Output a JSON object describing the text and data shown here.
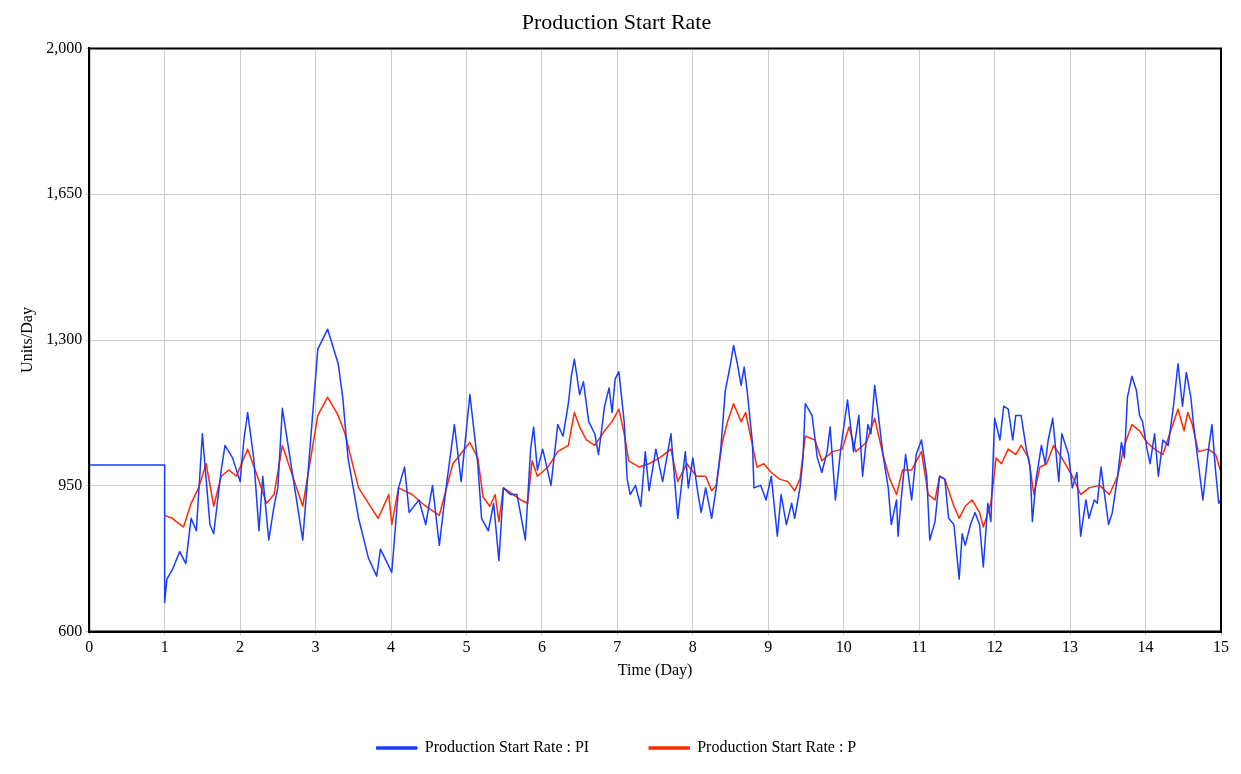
{
  "chart_data": {
    "type": "line",
    "title": "Production Start Rate",
    "xlabel": "Time (Day)",
    "ylabel": "Units/Day",
    "xlim": [
      0,
      15
    ],
    "xticks": [
      0,
      1,
      2,
      3,
      4,
      5,
      6,
      7,
      8,
      9,
      10,
      11,
      12,
      13,
      14,
      15
    ],
    "ylim": [
      600,
      2000
    ],
    "yticks": [
      600,
      950,
      {
        "value": 1300,
        "label": "1,300"
      },
      {
        "value": 1650,
        "label": "1,650"
      },
      {
        "value": 2000,
        "label": "2,000"
      }
    ],
    "grid": true,
    "legend": "bottom",
    "marker": "none",
    "line_style": "solid",
    "series": [
      {
        "name": "Production Start Rate : PI",
        "color": "#1a3cff",
        "x": [
          0,
          1,
          1,
          1.03,
          1.1,
          1.2,
          1.28,
          1.35,
          1.42,
          1.5,
          1.6,
          1.65,
          1.75,
          1.8,
          1.9,
          2.0,
          2.05,
          2.1,
          2.18,
          2.25,
          2.3,
          2.38,
          2.45,
          2.5,
          2.56,
          2.83,
          3.03,
          3.16,
          3.3,
          3.36,
          3.43,
          3.57,
          3.7,
          3.81,
          3.86,
          4.01,
          4.1,
          4.18,
          4.24,
          4.37,
          4.46,
          4.55,
          4.64,
          4.73,
          4.84,
          4.93,
          5.045,
          5.15,
          5.2,
          5.29,
          5.36,
          5.43,
          5.49,
          5.58,
          5.67,
          5.78,
          5.85,
          5.89,
          5.94,
          6.01,
          6.12,
          6.21,
          6.28,
          6.35,
          6.39,
          6.43,
          6.5,
          6.55,
          6.62,
          6.7,
          6.75,
          6.83,
          6.89,
          6.93,
          6.97,
          7.02,
          7.09,
          7.13,
          7.17,
          7.24,
          7.31,
          7.37,
          7.42,
          7.51,
          7.6,
          7.71,
          7.8,
          7.9,
          7.94,
          8.0,
          8.07,
          8.11,
          8.17,
          8.25,
          8.31,
          8.37,
          8.43,
          8.5,
          8.54,
          8.59,
          8.64,
          8.68,
          8.72,
          8.79,
          8.81,
          8.9,
          8.97,
          9.04,
          9.12,
          9.17,
          9.24,
          9.31,
          9.35,
          9.42,
          9.46,
          9.49,
          9.58,
          9.65,
          9.71,
          9.78,
          9.82,
          9.89,
          9.96,
          10.05,
          10.13,
          10.2,
          10.25,
          10.32,
          10.36,
          10.41,
          10.45,
          10.52,
          10.59,
          10.63,
          10.7,
          10.72,
          10.76,
          10.82,
          10.9,
          10.96,
          11.03,
          11.1,
          11.14,
          11.21,
          11.27,
          11.34,
          11.39,
          11.46,
          11.53,
          11.57,
          11.61,
          11.68,
          11.74,
          11.8,
          11.85,
          11.91,
          11.95,
          12.0,
          12.07,
          12.12,
          12.18,
          12.24,
          12.28,
          12.35,
          12.42,
          12.47,
          12.5,
          12.55,
          12.62,
          12.67,
          12.71,
          12.77,
          12.85,
          12.89,
          12.98,
          13.03,
          13.09,
          13.14,
          13.21,
          13.25,
          13.32,
          13.36,
          13.41,
          13.45,
          13.51,
          13.56,
          13.63,
          13.68,
          13.72,
          13.76,
          13.82,
          13.88,
          13.92,
          13.96,
          14.02,
          14.06,
          14.12,
          14.17,
          14.23,
          14.3,
          14.37,
          14.43,
          14.49,
          14.54,
          14.6,
          14.64,
          14.7,
          14.76,
          14.83,
          14.88,
          14.93,
          14.97,
          15
        ],
        "values": [
          1000,
          1000,
          670,
          726,
          748,
          792,
          763,
          872,
          842,
          1075,
          857,
          835,
          988,
          1047,
          1017,
          960,
          1060,
          1126,
          1017,
          842,
          973,
          820,
          901,
          945,
          1136,
          820,
          1278,
          1326,
          1243,
          1163,
          1017,
          872,
          777,
          733,
          798,
          742,
          945,
          995,
          886,
          916,
          857,
          951,
          807,
          945,
          1097,
          960,
          1169,
          1003,
          872,
          842,
          908,
          770,
          945,
          929,
          929,
          820,
          1038,
          1091,
          988,
          1038,
          951,
          1097,
          1069,
          1147,
          1213,
          1254,
          1169,
          1200,
          1104,
          1075,
          1025,
          1141,
          1185,
          1126,
          1206,
          1224,
          1104,
          966,
          929,
          951,
          901,
          1032,
          938,
          1038,
          960,
          1075,
          872,
          1032,
          945,
          1017,
          929,
          886,
          945,
          872,
          945,
          1038,
          1178,
          1243,
          1287,
          1243,
          1191,
          1235,
          1178,
          1054,
          945,
          951,
          916,
          973,
          829,
          929,
          857,
          908,
          872,
          945,
          1017,
          1147,
          1119,
          1017,
          982,
          1032,
          1091,
          916,
          1038,
          1156,
          1032,
          1119,
          973,
          1097,
          1075,
          1191,
          1134,
          1025,
          945,
          857,
          916,
          829,
          916,
          1025,
          916,
          1025,
          1060,
          973,
          820,
          864,
          973,
          966,
          872,
          857,
          726,
          835,
          807,
          857,
          886,
          857,
          755,
          908,
          864,
          1112,
          1060,
          1141,
          1134,
          1060,
          1119,
          1119,
          1038,
          995,
          864,
          966,
          1047,
          1003,
          1060,
          1112,
          960,
          1075,
          1025,
          945,
          982,
          829,
          916,
          872,
          916,
          908,
          995,
          938,
          857,
          886,
          973,
          1054,
          1017,
          1163,
          1213,
          1178,
          1119,
          1104,
          1038,
          1003,
          1075,
          973,
          1060,
          1047,
          1141,
          1243,
          1141,
          1222,
          1163,
          1091,
          1003,
          916,
          1032,
          1097,
          982,
          908,
          916
        ]
      },
      {
        "name": "Production Start Rate : P",
        "color": "#ff2a00",
        "x": [
          1,
          1.1,
          1.25,
          1.35,
          1.45,
          1.55,
          1.65,
          1.75,
          1.85,
          1.95,
          2.1,
          2.2,
          2.35,
          2.45,
          2.56,
          2.83,
          3.03,
          3.16,
          3.3,
          3.39,
          3.57,
          3.75,
          3.83,
          3.97,
          4.01,
          4.1,
          4.28,
          4.46,
          4.64,
          4.82,
          5.045,
          5.15,
          5.22,
          5.31,
          5.38,
          5.43,
          5.49,
          5.62,
          5.72,
          5.81,
          5.87,
          5.94,
          6.08,
          6.21,
          6.35,
          6.43,
          6.5,
          6.59,
          6.7,
          6.83,
          6.93,
          7.02,
          7.09,
          7.15,
          7.29,
          7.42,
          7.56,
          7.71,
          7.8,
          7.92,
          8.05,
          8.17,
          8.25,
          8.31,
          8.39,
          8.46,
          8.54,
          8.64,
          8.7,
          8.79,
          8.85,
          8.94,
          9.04,
          9.15,
          9.26,
          9.35,
          9.42,
          9.49,
          9.62,
          9.71,
          9.85,
          9.98,
          10.07,
          10.16,
          10.3,
          10.41,
          10.52,
          10.61,
          10.7,
          10.78,
          10.9,
          11.03,
          11.12,
          11.21,
          11.27,
          11.34,
          11.46,
          11.53,
          11.61,
          11.7,
          11.8,
          11.85,
          11.95,
          12.02,
          12.09,
          12.18,
          12.28,
          12.35,
          12.45,
          12.52,
          12.6,
          12.69,
          12.78,
          12.89,
          13.03,
          13.14,
          13.25,
          13.39,
          13.52,
          13.63,
          13.72,
          13.82,
          13.92,
          14.02,
          14.12,
          14.23,
          14.32,
          14.43,
          14.51,
          14.56,
          14.62,
          14.7,
          14.83,
          14.93,
          15
        ],
        "values": [
          879,
          872,
          851,
          908,
          945,
          1003,
          901,
          973,
          988,
          973,
          1038,
          988,
          908,
          929,
          1047,
          901,
          1119,
          1163,
          1119,
          1075,
          945,
          894,
          872,
          929,
          857,
          945,
          929,
          901,
          879,
          1003,
          1054,
          1017,
          923,
          901,
          929,
          864,
          945,
          929,
          916,
          908,
          1010,
          973,
          995,
          1032,
          1047,
          1126,
          1091,
          1060,
          1047,
          1082,
          1104,
          1134,
          1075,
          1010,
          995,
          1003,
          1017,
          1038,
          960,
          1003,
          973,
          973,
          938,
          951,
          1054,
          1104,
          1147,
          1104,
          1126,
          1047,
          995,
          1003,
          982,
          966,
          960,
          938,
          966,
          1069,
          1060,
          1010,
          1032,
          1038,
          1091,
          1032,
          1054,
          1112,
          1025,
          966,
          929,
          988,
          988,
          1032,
          929,
          916,
          973,
          966,
          901,
          872,
          901,
          916,
          886,
          851,
          908,
          1017,
          1003,
          1038,
          1025,
          1047,
          1017,
          929,
          995,
          1003,
          1047,
          1017,
          973,
          929,
          945,
          951,
          929,
          973,
          1047,
          1097,
          1082,
          1054,
          1038,
          1025,
          1075,
          1134,
          1082,
          1126,
          1097,
          1032,
          1038,
          1025,
          982
        ]
      }
    ]
  }
}
